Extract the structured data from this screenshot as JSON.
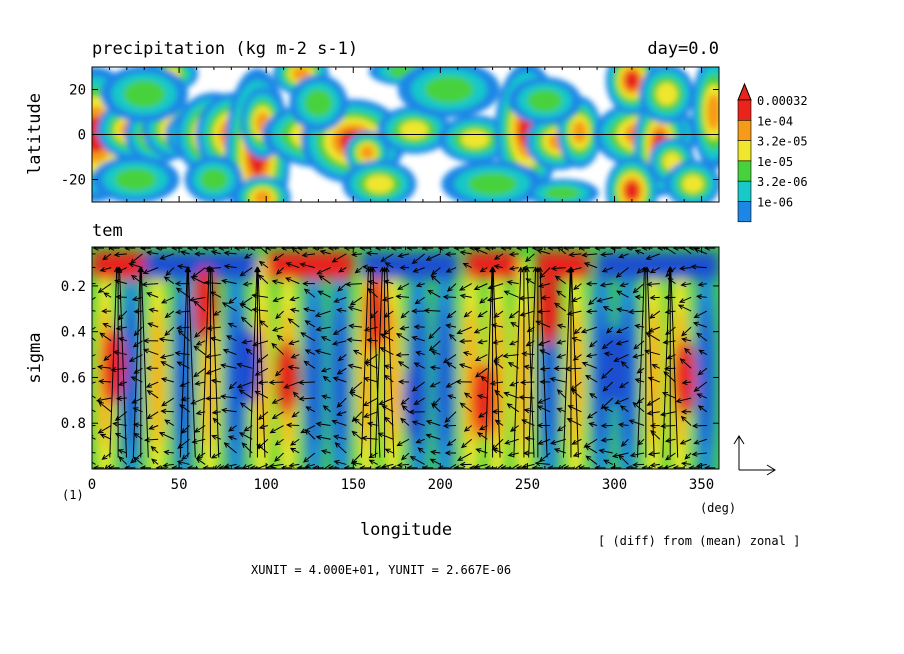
{
  "chart_data": [
    {
      "type": "heatmap",
      "title": "precipitation (kg m-2 s-1)",
      "time_label": "day=0.0",
      "ylabel": "latitude",
      "xlim": [
        0,
        360
      ],
      "ylim": [
        -30,
        30
      ],
      "yticks": [
        {
          "v": 20,
          "t": "20"
        },
        {
          "v": 0,
          "t": "0"
        },
        {
          "v": -20,
          "t": "-20"
        }
      ],
      "zero_line": true,
      "colorbar": {
        "labels": [
          "0.00032",
          "1e-04",
          "3.2e-05",
          "1e-05",
          "3.2e-06",
          "1e-06"
        ],
        "colors": [
          "#e8241c",
          "#f59b19",
          "#f0e62d",
          "#46d23c",
          "#19c8c8",
          "#1e87e6"
        ]
      },
      "blobs": [
        {
          "x": 2,
          "y": 0,
          "lv": 5,
          "rx": 7,
          "ry": 8
        },
        {
          "x": 22,
          "y": 2,
          "lv": 4,
          "rx": 6,
          "ry": 4
        },
        {
          "x": 38,
          "y": 0,
          "lv": 4,
          "rx": 6,
          "ry": 4
        },
        {
          "x": 48,
          "y": 2,
          "lv": 4,
          "rx": 6,
          "ry": 4
        },
        {
          "x": 58,
          "y": 0,
          "lv": 3,
          "rx": 6,
          "ry": 4
        },
        {
          "x": 70,
          "y": 0,
          "lv": 5,
          "rx": 6,
          "ry": 5
        },
        {
          "x": 82,
          "y": 0,
          "lv": 5,
          "rx": 6,
          "ry": 5
        },
        {
          "x": 95,
          "y": -8,
          "lv": 5,
          "rx": 5,
          "ry": 10
        },
        {
          "x": 98,
          "y": 5,
          "lv": 4,
          "rx": 4,
          "ry": 5
        },
        {
          "x": 135,
          "y": 0,
          "lv": 5,
          "rx": 10,
          "ry": 4
        },
        {
          "x": 150,
          "y": -3,
          "lv": 5,
          "rx": 8,
          "ry": 5
        },
        {
          "x": 158,
          "y": -8,
          "lv": 4,
          "rx": 4,
          "ry": 3
        },
        {
          "x": 185,
          "y": 2,
          "lv": 3,
          "rx": 8,
          "ry": 4
        },
        {
          "x": 220,
          "y": -2,
          "lv": 3,
          "rx": 8,
          "ry": 4
        },
        {
          "x": 250,
          "y": 2,
          "lv": 5,
          "rx": 5,
          "ry": 8
        },
        {
          "x": 268,
          "y": -3,
          "lv": 4,
          "rx": 6,
          "ry": 4
        },
        {
          "x": 280,
          "y": 1,
          "lv": 4,
          "rx": 4,
          "ry": 5
        },
        {
          "x": 318,
          "y": 0,
          "lv": 5,
          "rx": 8,
          "ry": 4
        },
        {
          "x": 326,
          "y": -5,
          "lv": 5,
          "rx": 4,
          "ry": 6
        },
        {
          "x": 333,
          "y": -12,
          "lv": 3,
          "rx": 5,
          "ry": 4
        },
        {
          "x": 357,
          "y": 10,
          "lv": 4,
          "rx": 4,
          "ry": 8
        },
        {
          "x": 310,
          "y": 24,
          "lv": 5,
          "rx": 4,
          "ry": 4
        },
        {
          "x": 45,
          "y": 27,
          "lv": 3,
          "rx": 6,
          "ry": 3
        },
        {
          "x": 120,
          "y": 27,
          "lv": 4,
          "rx": 5,
          "ry": 3
        },
        {
          "x": 180,
          "y": 28,
          "lv": 2,
          "rx": 10,
          "ry": 3
        },
        {
          "x": 30,
          "y": 18,
          "lv": 2,
          "rx": 12,
          "ry": 6
        },
        {
          "x": 205,
          "y": 20,
          "lv": 2,
          "rx": 14,
          "ry": 6
        },
        {
          "x": 330,
          "y": 18,
          "lv": 3,
          "rx": 6,
          "ry": 5
        },
        {
          "x": 310,
          "y": -25,
          "lv": 5,
          "rx": 4,
          "ry": 4
        },
        {
          "x": 98,
          "y": -28,
          "lv": 4,
          "rx": 5,
          "ry": 3
        },
        {
          "x": 165,
          "y": -22,
          "lv": 3,
          "rx": 8,
          "ry": 4
        },
        {
          "x": 25,
          "y": -20,
          "lv": 2,
          "rx": 12,
          "ry": 5
        },
        {
          "x": 230,
          "y": -22,
          "lv": 2,
          "rx": 14,
          "ry": 5
        },
        {
          "x": 270,
          "y": -26,
          "lv": 2,
          "rx": 10,
          "ry": 3
        },
        {
          "x": 345,
          "y": -22,
          "lv": 3,
          "rx": 6,
          "ry": 4
        },
        {
          "x": 70,
          "y": -20,
          "lv": 2,
          "rx": 8,
          "ry": 5
        },
        {
          "x": 130,
          "y": 14,
          "lv": 2,
          "rx": 8,
          "ry": 6
        },
        {
          "x": 260,
          "y": 15,
          "lv": 2,
          "rx": 10,
          "ry": 5
        }
      ]
    },
    {
      "type": "heatmap",
      "title": "tem",
      "ylabel": "sigma",
      "xlabel": "longitude",
      "xunits": "(deg)",
      "panel_label": "(1)",
      "xlim": [
        0,
        360
      ],
      "ylim": [
        1.0,
        0.03
      ],
      "xticks": [
        {
          "v": 0,
          "t": "0"
        },
        {
          "v": 50,
          "t": "50"
        },
        {
          "v": 100,
          "t": "100"
        },
        {
          "v": 150,
          "t": "150"
        },
        {
          "v": 200,
          "t": "200"
        },
        {
          "v": 250,
          "t": "250"
        },
        {
          "v": 300,
          "t": "300"
        },
        {
          "v": 350,
          "t": "350"
        }
      ],
      "yticks": [
        {
          "v": 0.2,
          "t": "0.2"
        },
        {
          "v": 0.4,
          "t": "0.4"
        },
        {
          "v": 0.6,
          "t": "0.6"
        },
        {
          "v": 0.8,
          "t": "0.8"
        }
      ],
      "column_pattern": [
        "warm",
        "cold",
        "warm",
        "cold",
        "warm",
        "cold",
        "warm",
        "warm",
        "cold",
        "cold",
        "warm",
        "warm",
        "cold",
        "cold",
        "warm",
        "warm",
        "warm",
        "cold",
        "warm",
        "cold",
        "cold",
        "warm",
        "warm",
        "cold"
      ],
      "upper_band": [
        {
          "x0": 100,
          "x1": 150,
          "lv": "warm"
        },
        {
          "x0": 215,
          "x1": 245,
          "lv": "warm"
        },
        {
          "x0": 255,
          "x1": 285,
          "lv": "warm"
        },
        {
          "x0": 0,
          "x1": 30,
          "lv": "warm"
        },
        {
          "x0": 30,
          "x1": 95,
          "lv": "cold"
        },
        {
          "x0": 155,
          "x1": 210,
          "lv": "cold"
        },
        {
          "x0": 290,
          "x1": 360,
          "lv": "cold"
        }
      ],
      "strong_cells": [
        {
          "x": 12,
          "y": 0.55,
          "lv": "hot"
        },
        {
          "x": 65,
          "y": 0.28,
          "lv": "hot"
        },
        {
          "x": 112,
          "y": 0.6,
          "lv": "hot"
        },
        {
          "x": 163,
          "y": 0.32,
          "lv": "hot"
        },
        {
          "x": 225,
          "y": 0.7,
          "lv": "hot"
        },
        {
          "x": 262,
          "y": 0.3,
          "lv": "hot"
        },
        {
          "x": 340,
          "y": 0.6,
          "lv": "hot"
        },
        {
          "x": 90,
          "y": 0.55,
          "lv": "deep"
        },
        {
          "x": 185,
          "y": 0.7,
          "lv": "deep"
        },
        {
          "x": 300,
          "y": 0.55,
          "lv": "deep"
        }
      ],
      "vector_field": {
        "x_spacing": 9,
        "levels": [
          0.06,
          0.12,
          0.19,
          0.25,
          0.31,
          0.38,
          0.44,
          0.5,
          0.56,
          0.62,
          0.69,
          0.75,
          0.81,
          0.87,
          0.93,
          0.98
        ],
        "jets": [
          {
            "x": 15,
            "w": 2.5
          },
          {
            "x": 28,
            "w": 2
          },
          {
            "x": 55,
            "w": 2
          },
          {
            "x": 68,
            "w": 2.5
          },
          {
            "x": 95,
            "w": 2
          },
          {
            "x": 160,
            "w": 3
          },
          {
            "x": 168,
            "w": 3
          },
          {
            "x": 230,
            "w": 2
          },
          {
            "x": 248,
            "w": 3.5
          },
          {
            "x": 256,
            "w": 3
          },
          {
            "x": 275,
            "w": 2
          },
          {
            "x": 318,
            "w": 2.5
          },
          {
            "x": 332,
            "w": 2
          }
        ]
      },
      "vector_units": {
        "label": "XUNIT = 4.000E+01, YUNIT = 2.667E-06"
      },
      "note": "[ (diff) from (mean) zonal ]"
    }
  ]
}
